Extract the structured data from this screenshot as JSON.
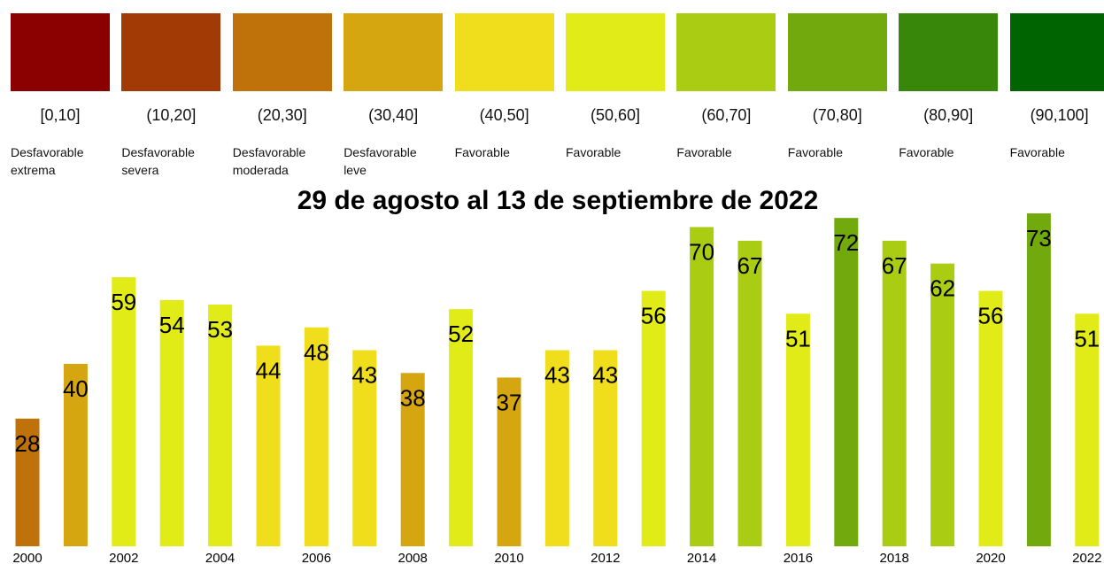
{
  "legend": [
    {
      "range": "[0,10]",
      "label": "Desfavorable extrema",
      "color": "#8B0000"
    },
    {
      "range": "(10,20]",
      "label": "Desfavorable severa",
      "color": "#A23A06"
    },
    {
      "range": "(20,30]",
      "label": "Desfavorable moderada",
      "color": "#BF7209"
    },
    {
      "range": "(30,40]",
      "label": "Desfavorable leve",
      "color": "#D6A611"
    },
    {
      "range": "(40,50]",
      "label": "Favorable",
      "color": "#F0DD1C"
    },
    {
      "range": "(50,60]",
      "label": "Favorable",
      "color": "#E0EB18"
    },
    {
      "range": "(60,70]",
      "label": "Favorable",
      "color": "#AACC12"
    },
    {
      "range": "(70,80]",
      "label": "Favorable",
      "color": "#72AA0E"
    },
    {
      "range": "(80,90]",
      "label": "Favorable",
      "color": "#38860A"
    },
    {
      "range": "(90,100]",
      "label": "Favorable",
      "color": "#006400"
    }
  ],
  "chart_data": {
    "type": "bar",
    "title": "29 de agosto al 13 de septiembre de 2022",
    "categories": [
      "2000",
      null,
      "2002",
      null,
      "2004",
      null,
      "2006",
      null,
      "2008",
      null,
      "2010",
      null,
      "2012",
      null,
      "2014",
      null,
      "2016",
      null,
      "2018",
      null,
      "2020",
      null,
      "2022"
    ],
    "values": [
      28,
      40,
      59,
      54,
      53,
      44,
      48,
      43,
      38,
      52,
      37,
      43,
      43,
      56,
      70,
      67,
      51,
      72,
      67,
      62,
      56,
      73,
      51
    ],
    "colors": [
      "#BF7209",
      "#D6A611",
      "#E0EB18",
      "#E0EB18",
      "#E0EB18",
      "#F0DD1C",
      "#F0DD1C",
      "#F0DD1C",
      "#D6A611",
      "#E0EB18",
      "#D6A611",
      "#F0DD1C",
      "#F0DD1C",
      "#E0EB18",
      "#AACC12",
      "#AACC12",
      "#E0EB18",
      "#72AA0E",
      "#AACC12",
      "#AACC12",
      "#E0EB18",
      "#72AA0E",
      "#E0EB18"
    ],
    "ylim": [
      0,
      73
    ]
  }
}
